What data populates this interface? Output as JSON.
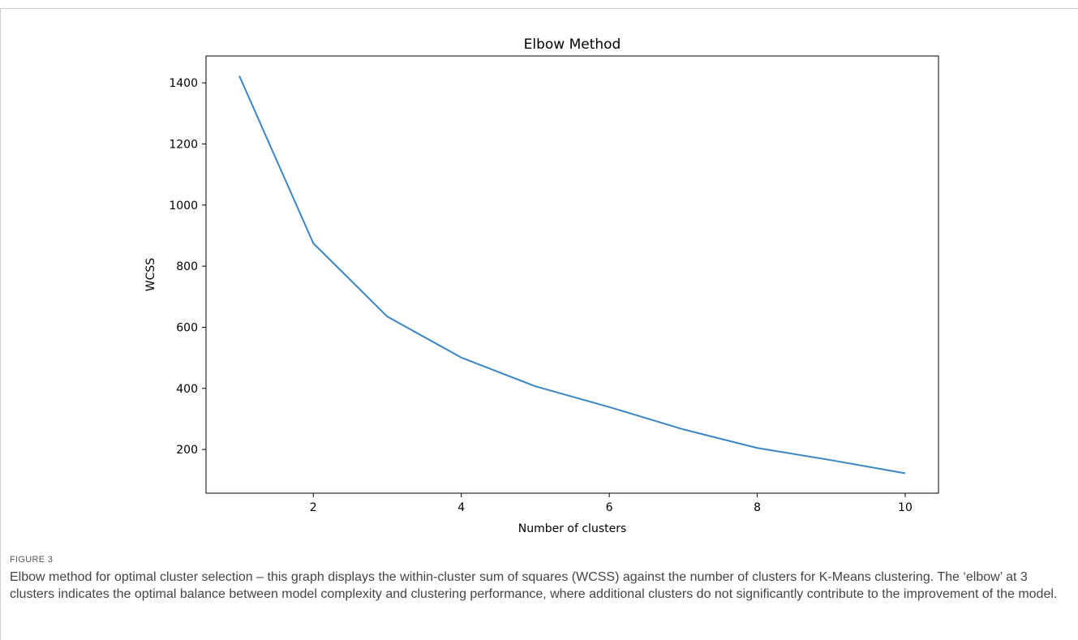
{
  "figure": {
    "label": "FIGURE 3",
    "caption": "Elbow method for optimal cluster selection – this graph displays the within-cluster sum of squares (WCSS) against the number of clusters for K-Means clustering. The ‘elbow’ at 3 clusters indicates the optimal balance between model complexity and clustering performance, where additional clusters do not significantly contribute to the improvement of the model."
  },
  "chart_data": {
    "type": "line",
    "title": "Elbow Method",
    "xlabel": "Number of clusters",
    "ylabel": "WCSS",
    "x": [
      1,
      2,
      3,
      4,
      5,
      6,
      7,
      8,
      9,
      10
    ],
    "series": [
      {
        "values": [
          1423,
          875,
          635,
          501,
          407,
          339,
          266,
          205,
          165,
          122
        ],
        "color": "#3a86c1"
      }
    ],
    "xlim": [
      0.55,
      10.45
    ],
    "ylim": [
      57,
      1488
    ],
    "xticks": [
      "2",
      "4",
      "6",
      "8",
      "10"
    ],
    "yticks": [
      "200",
      "400",
      "600",
      "800",
      "1000",
      "1200",
      "1400"
    ],
    "grid": false,
    "legend": "none"
  }
}
